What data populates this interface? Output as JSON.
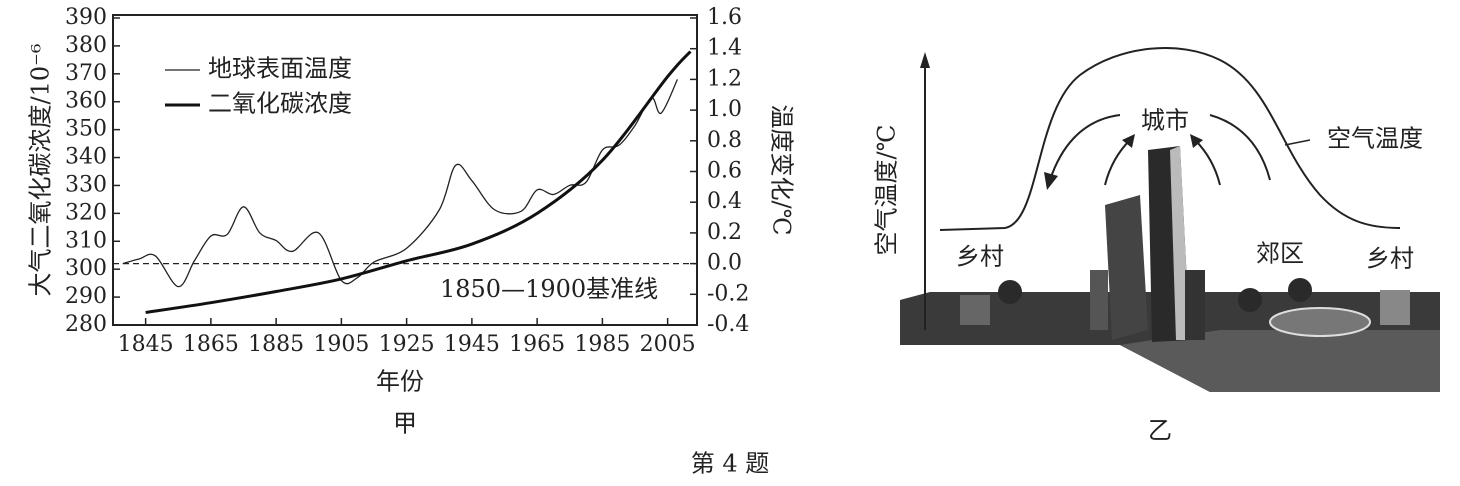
{
  "chart_data": {
    "type": "line",
    "ylabel": "大气二氧化碳浓度/10⁻⁶",
    "y2label": "温度变化/℃",
    "xlabel": "年份",
    "caption": "甲",
    "xlim": [
      1835,
      2014
    ],
    "xticks": [
      1845,
      1865,
      1885,
      1905,
      1925,
      1945,
      1965,
      1985,
      2005
    ],
    "ylim": [
      280,
      390
    ],
    "yticks": [
      280,
      290,
      300,
      310,
      320,
      330,
      340,
      350,
      360,
      370,
      380,
      390
    ],
    "y2lim": [
      -0.4,
      1.6
    ],
    "y2ticks": [
      -0.4,
      -0.2,
      {
        "value": 0,
        "label": "0.0"
      },
      0.2,
      0.4,
      0.6,
      0.8,
      {
        "value": 1,
        "label": "1.0"
      },
      1.2,
      1.4,
      1.6
    ],
    "baseline": {
      "y2": 0,
      "label": "1850—1900基准线"
    },
    "series": [
      {
        "name": "地球表面温度",
        "color": "#222222",
        "line_width": 1.3,
        "axis": "y2",
        "x": [
          1838,
          1843,
          1848,
          1855,
          1860,
          1865,
          1870,
          1875,
          1880,
          1885,
          1890,
          1898,
          1905,
          1910,
          1915,
          1925,
          1935,
          1940,
          1945,
          1952,
          1960,
          1965,
          1970,
          1975,
          1980,
          1985,
          1990,
          1995,
          2000,
          2003,
          2008
        ],
        "values": [
          0.0,
          0.03,
          0.05,
          -0.15,
          0.02,
          0.18,
          0.19,
          0.37,
          0.2,
          0.15,
          0.08,
          0.2,
          -0.11,
          -0.09,
          0.01,
          0.1,
          0.35,
          0.64,
          0.54,
          0.35,
          0.34,
          0.48,
          0.45,
          0.51,
          0.53,
          0.74,
          0.77,
          0.9,
          1.08,
          0.98,
          1.2
        ]
      },
      {
        "name": "二氧化碳浓度",
        "color": "#111111",
        "line_width": 3,
        "axis": "y",
        "x": [
          1845,
          1865,
          1885,
          1905,
          1925,
          1945,
          1965,
          1985,
          2005,
          2012
        ],
        "values": [
          284.5,
          288,
          292,
          296.5,
          303,
          309,
          320,
          339,
          369,
          378
        ]
      }
    ],
    "legend": "upper left"
  },
  "diagram": {
    "caption": "乙",
    "y_axis_label": "空气温度/℃",
    "curve_label": "空气温度",
    "labels": {
      "city": "城市",
      "suburb": "郊区",
      "rural_left": "乡村",
      "rural_right": "乡村"
    }
  },
  "question": "第 4 题"
}
